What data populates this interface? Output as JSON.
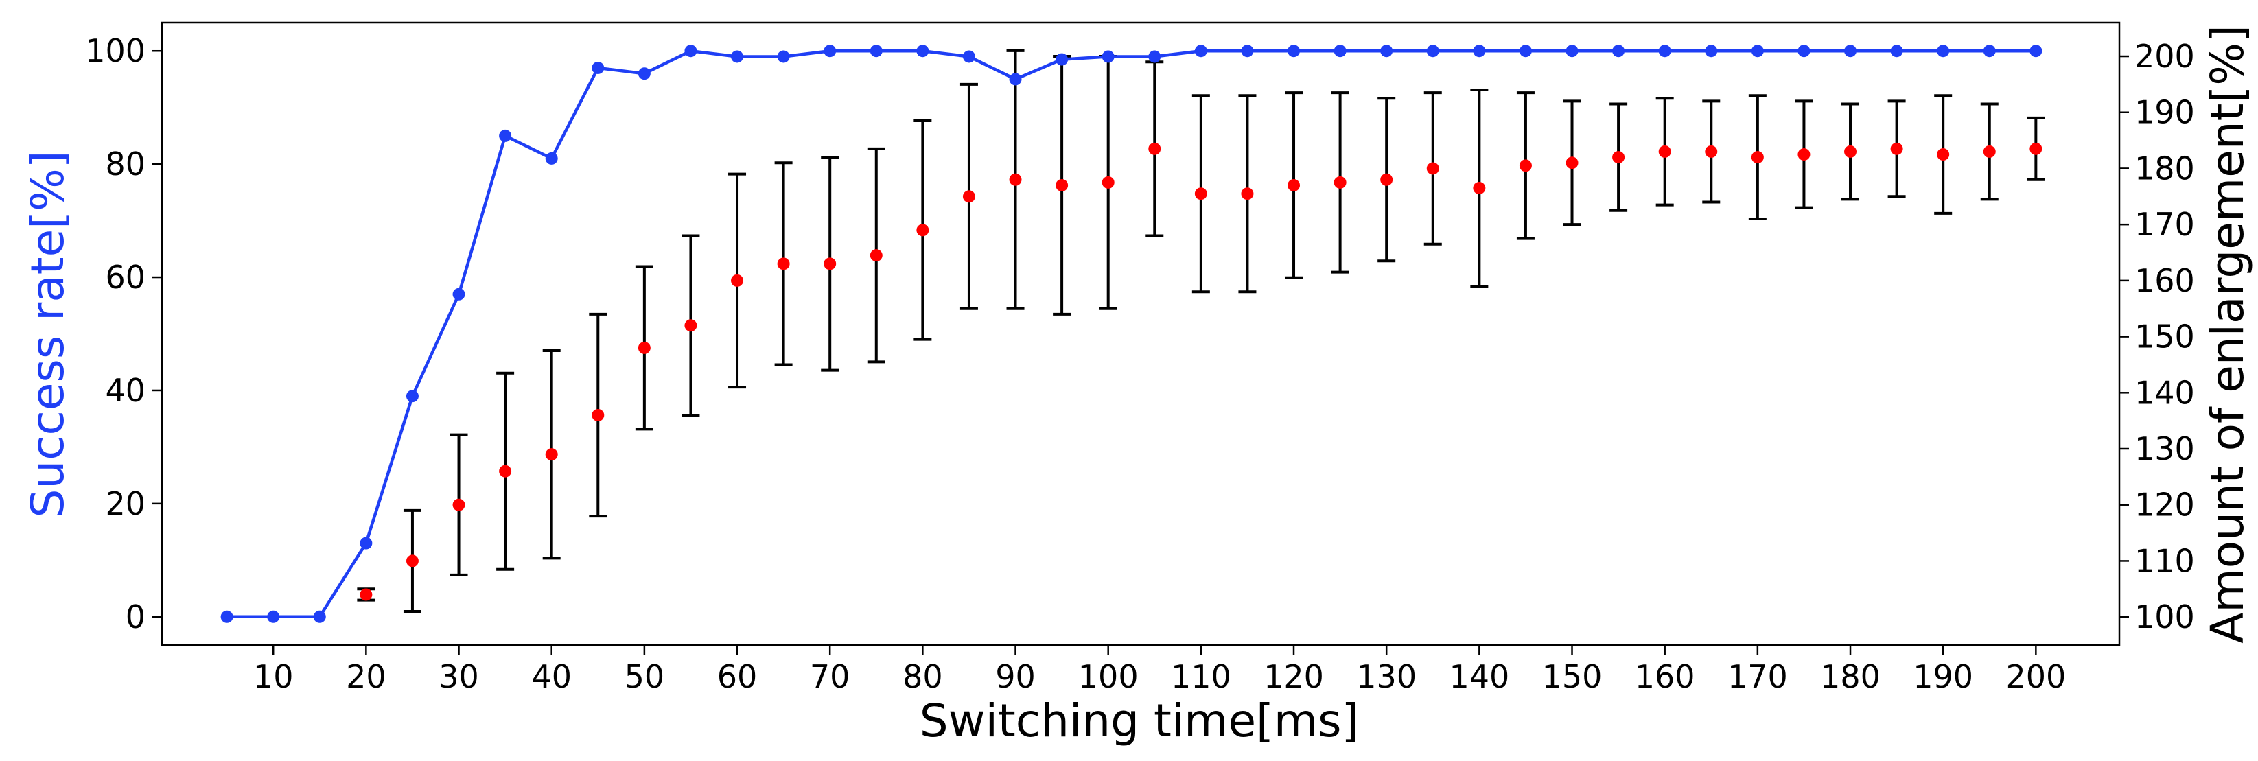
{
  "chart_data": {
    "type": "line+errorbar",
    "title": "",
    "xlabel": "Switching time[ms]",
    "ylabel_left": "Success rate[%]",
    "ylabel_right": "Amount of enlargement[%]",
    "x_ticks": [
      10,
      20,
      30,
      40,
      50,
      60,
      70,
      80,
      90,
      100,
      110,
      120,
      130,
      140,
      150,
      160,
      170,
      180,
      190,
      200
    ],
    "xlim": [
      -2,
      209
    ],
    "ylim_left": [
      -5,
      105
    ],
    "ylim_right": [
      95,
      206
    ],
    "y_ticks_left": [
      0,
      20,
      40,
      60,
      80,
      100
    ],
    "y_ticks_right": [
      100,
      110,
      120,
      130,
      140,
      150,
      160,
      170,
      180,
      190,
      200
    ],
    "grid": false,
    "colors": {
      "success_line": "#1f3ff5",
      "success_label": "#1f3ff5",
      "enlargement_points": "#ff0000",
      "error_bars": "#000000"
    },
    "series": [
      {
        "name": "Success rate",
        "axis": "left",
        "style": "line-markers",
        "x": [
          5,
          10,
          15,
          20,
          25,
          30,
          35,
          40,
          45,
          50,
          55,
          60,
          65,
          70,
          75,
          80,
          85,
          90,
          95,
          100,
          105,
          110,
          115,
          120,
          125,
          130,
          135,
          140,
          145,
          150,
          155,
          160,
          165,
          170,
          175,
          180,
          185,
          190,
          195,
          200
        ],
        "values": [
          0,
          0,
          0,
          13,
          39,
          57,
          85,
          81,
          97,
          96,
          100,
          99,
          99,
          100,
          100,
          100,
          99,
          95,
          98.5,
          99,
          99,
          100,
          100,
          100,
          100,
          100,
          100,
          100,
          100,
          100,
          100,
          100,
          100,
          100,
          100,
          100,
          100,
          100,
          100,
          100
        ]
      },
      {
        "name": "Amount of enlargement",
        "axis": "right",
        "style": "points-errorbars",
        "x": [
          20,
          25,
          30,
          35,
          40,
          45,
          50,
          55,
          60,
          65,
          70,
          75,
          80,
          85,
          90,
          95,
          100,
          105,
          110,
          115,
          120,
          125,
          130,
          135,
          140,
          145,
          150,
          155,
          160,
          165,
          170,
          175,
          180,
          185,
          190,
          195,
          200
        ],
        "values": [
          104,
          110,
          120,
          126,
          129,
          136,
          148,
          152,
          160,
          163,
          163,
          164.5,
          169,
          175,
          178,
          177,
          177.5,
          183.5,
          175.5,
          175.5,
          177,
          177.5,
          178,
          180,
          176.5,
          180.5,
          181,
          182,
          183,
          183,
          182,
          182.5,
          183,
          183.5,
          182.5,
          183,
          183.5
        ],
        "errors": [
          1,
          9,
          12.5,
          17.5,
          18.5,
          18,
          14.5,
          16,
          19,
          18,
          19,
          19,
          19.5,
          20,
          23,
          23,
          22.5,
          15.5,
          17.5,
          17.5,
          16.5,
          16,
          14.5,
          13.5,
          17.5,
          13,
          11,
          9.5,
          9.5,
          9,
          11,
          9.5,
          8.5,
          8.5,
          10.5,
          8.5,
          5.5
        ]
      }
    ]
  }
}
